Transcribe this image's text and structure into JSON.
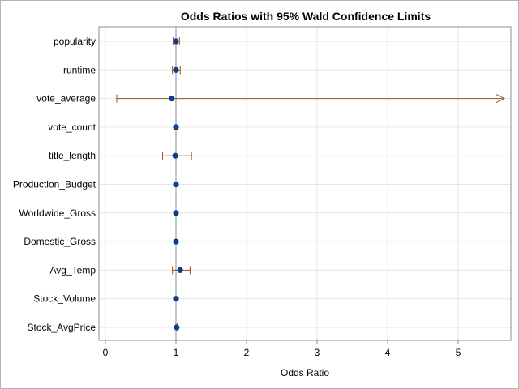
{
  "chart_data": {
    "type": "scatter",
    "subtype": "forest-plot",
    "title": "Odds Ratios with 95% Wald Confidence Limits",
    "xlabel": "Odds Ratio",
    "ylabel": "",
    "xlim": [
      0,
      5.8
    ],
    "xticks": [
      0,
      1,
      2,
      3,
      4,
      5
    ],
    "reference_line": 1,
    "grid": true,
    "colors": {
      "point": "#0b3f8f",
      "ci": "#a0521d",
      "grid": "#e6e6e6",
      "refline": "#8c8c8c",
      "axis": "#8c8c8c"
    },
    "categories": [
      "popularity",
      "runtime",
      "vote_average",
      "vote_count",
      "title_length",
      "Production_Budget",
      "Worldwide_Gross",
      "Domestic_Gross",
      "Avg_Temp",
      "Stock_Volume",
      "Stock_AvgPrice"
    ],
    "points": [
      {
        "label": "popularity",
        "estimate": 1.0,
        "lower": 0.96,
        "upper": 1.05
      },
      {
        "label": "runtime",
        "estimate": 1.0,
        "lower": 0.95,
        "upper": 1.06
      },
      {
        "label": "vote_average",
        "estimate": 0.94,
        "lower": 0.16,
        "upper": 5.7,
        "upper_truncated": true
      },
      {
        "label": "vote_count",
        "estimate": 1.0,
        "lower": 1.0,
        "upper": 1.0
      },
      {
        "label": "title_length",
        "estimate": 0.99,
        "lower": 0.81,
        "upper": 1.22
      },
      {
        "label": "Production_Budget",
        "estimate": 1.0,
        "lower": 1.0,
        "upper": 1.0
      },
      {
        "label": "Worldwide_Gross",
        "estimate": 1.0,
        "lower": 1.0,
        "upper": 1.0
      },
      {
        "label": "Domestic_Gross",
        "estimate": 1.0,
        "lower": 1.0,
        "upper": 1.0
      },
      {
        "label": "Avg_Temp",
        "estimate": 1.06,
        "lower": 0.95,
        "upper": 1.2
      },
      {
        "label": "Stock_Volume",
        "estimate": 1.0,
        "lower": 1.0,
        "upper": 1.0
      },
      {
        "label": "Stock_AvgPrice",
        "estimate": 1.01,
        "lower": 1.0,
        "upper": 1.02
      }
    ]
  }
}
